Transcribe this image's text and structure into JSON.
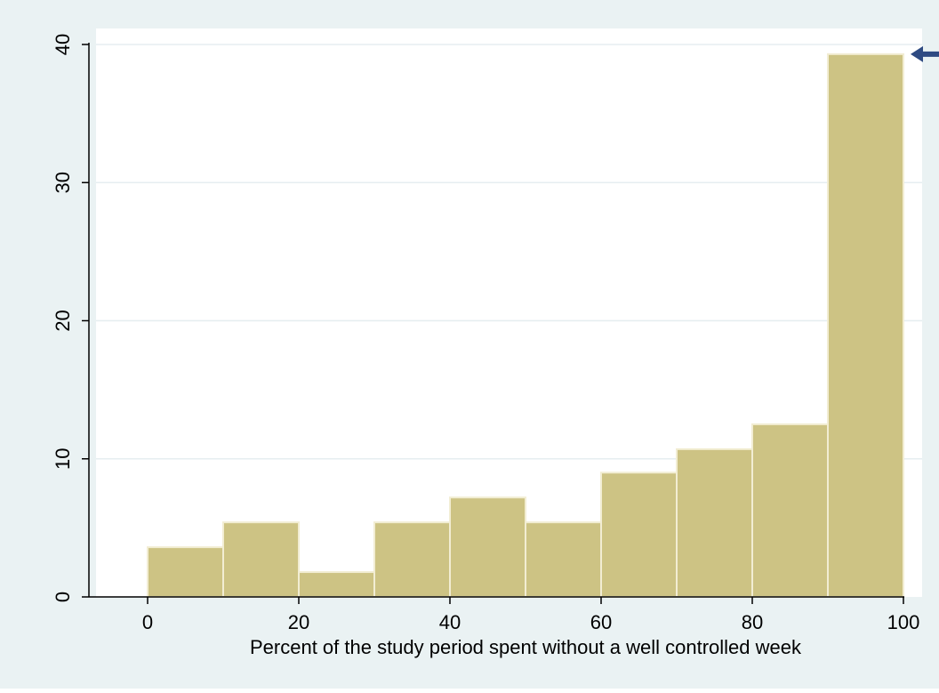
{
  "chart_data": {
    "type": "bar",
    "subtype": "histogram",
    "title": "",
    "xlabel": "Percent of the study period spent without a well controlled week",
    "ylabel": "",
    "xlim": [
      0,
      100
    ],
    "ylim": [
      0,
      40
    ],
    "x_ticks": [
      "0",
      "20",
      "40",
      "60",
      "80",
      "100"
    ],
    "y_ticks": [
      "0",
      "10",
      "20",
      "30",
      "40"
    ],
    "bins": [
      {
        "start": 0,
        "end": 10,
        "value": 3.6
      },
      {
        "start": 10,
        "end": 20,
        "value": 5.4
      },
      {
        "start": 20,
        "end": 30,
        "value": 1.8
      },
      {
        "start": 30,
        "end": 40,
        "value": 5.4
      },
      {
        "start": 40,
        "end": 50,
        "value": 7.2
      },
      {
        "start": 50,
        "end": 60,
        "value": 5.4
      },
      {
        "start": 60,
        "end": 70,
        "value": 9.0
      },
      {
        "start": 70,
        "end": 80,
        "value": 10.7
      },
      {
        "start": 80,
        "end": 90,
        "value": 12.5
      },
      {
        "start": 90,
        "end": 100,
        "value": 39.3
      }
    ],
    "grid": true,
    "legend": "none",
    "annotation": "arrow pointing left at the top of the tallest bar",
    "colors": {
      "background": "#eaf2f3",
      "plot_area": "#ffffff",
      "bar_fill": "#cdc384",
      "bar_stroke": "#f2edd3",
      "gridline": "#e6eef0",
      "axis": "#000000",
      "arrow": "#2e4a82"
    }
  }
}
